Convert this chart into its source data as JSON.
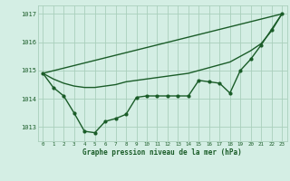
{
  "title": "Graphe pression niveau de la mer (hPa)",
  "background_color": "#d4eee4",
  "grid_color": "#aacfbc",
  "line_color": "#1a5c28",
  "text_color": "#1a5c28",
  "xmin": -0.5,
  "xmax": 23.5,
  "ymin": 1012.5,
  "ymax": 1017.3,
  "yticks": [
    1013,
    1014,
    1015,
    1016,
    1017
  ],
  "xticks": [
    0,
    1,
    2,
    3,
    4,
    5,
    6,
    7,
    8,
    9,
    10,
    11,
    12,
    13,
    14,
    15,
    16,
    17,
    18,
    19,
    20,
    21,
    22,
    23
  ],
  "series": [
    {
      "x": [
        0,
        23
      ],
      "y": [
        1014.9,
        1017.0
      ],
      "marker": null,
      "linewidth": 1.0,
      "markersize": 0
    },
    {
      "x": [
        0,
        1,
        2,
        3,
        4,
        5,
        6,
        7,
        8,
        9,
        10,
        11,
        12,
        13,
        14,
        15,
        16,
        17,
        18,
        19,
        20,
        21,
        22,
        23
      ],
      "y": [
        1014.9,
        1014.7,
        1014.55,
        1014.45,
        1014.4,
        1014.4,
        1014.45,
        1014.5,
        1014.6,
        1014.65,
        1014.7,
        1014.75,
        1014.8,
        1014.85,
        1014.9,
        1015.0,
        1015.1,
        1015.2,
        1015.3,
        1015.5,
        1015.7,
        1015.95,
        1016.4,
        1017.0
      ],
      "marker": null,
      "linewidth": 1.0,
      "markersize": 0
    },
    {
      "x": [
        0,
        1,
        2,
        3,
        4,
        5,
        6,
        7,
        8,
        9,
        10,
        11,
        12,
        13,
        14,
        15,
        16,
        17,
        18,
        19,
        20,
        21,
        22,
        23
      ],
      "y": [
        1014.9,
        1014.4,
        1014.1,
        1013.5,
        1012.85,
        1012.8,
        1013.2,
        1013.3,
        1013.45,
        1014.05,
        1014.1,
        1014.1,
        1014.1,
        1014.1,
        1014.1,
        1014.65,
        1014.6,
        1014.55,
        1014.2,
        1015.0,
        1015.4,
        1015.9,
        1016.45,
        1017.0
      ],
      "marker": "o",
      "linewidth": 1.0,
      "markersize": 2.0
    }
  ]
}
